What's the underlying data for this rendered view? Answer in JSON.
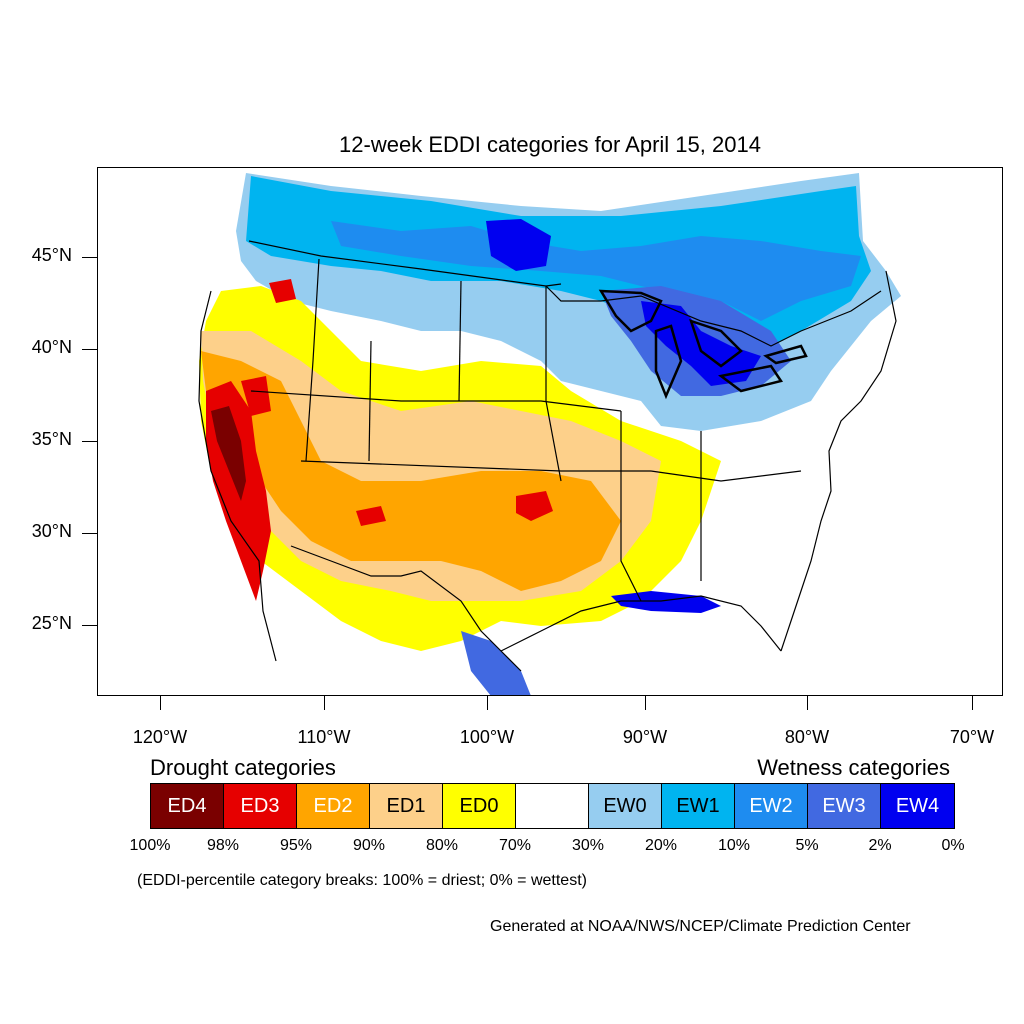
{
  "title": "12-week EDDI categories for April 15, 2014",
  "lat_labels": [
    "45°N",
    "40°N",
    "35°N",
    "30°N",
    "25°N"
  ],
  "lon_labels": [
    "120°W",
    "110°W",
    "100°W",
    "90°W",
    "80°W",
    "70°W"
  ],
  "legend": {
    "drought_header": "Drought categories",
    "wetness_header": "Wetness categories",
    "categories": [
      {
        "label": "ED4",
        "color": "#7a0000",
        "text_color": "#ffffff"
      },
      {
        "label": "ED3",
        "color": "#e60000",
        "text_color": "#ffffff"
      },
      {
        "label": "ED2",
        "color": "#ffa500",
        "text_color": "#ffffff"
      },
      {
        "label": "ED1",
        "color": "#fdd08a",
        "text_color": "#000000"
      },
      {
        "label": "ED0",
        "color": "#ffff00",
        "text_color": "#000000"
      },
      {
        "label": "",
        "color": "#ffffff",
        "text_color": "#000000"
      },
      {
        "label": "EW0",
        "color": "#96cdf0",
        "text_color": "#000000"
      },
      {
        "label": "EW1",
        "color": "#00b4f0",
        "text_color": "#000000"
      },
      {
        "label": "EW2",
        "color": "#1e8cf0",
        "text_color": "#ffffff"
      },
      {
        "label": "EW3",
        "color": "#4169e1",
        "text_color": "#ffffff"
      },
      {
        "label": "EW4",
        "color": "#0000f0",
        "text_color": "#ffffff"
      }
    ],
    "breaks": [
      "100%",
      "98%",
      "95%",
      "90%",
      "80%",
      "70%",
      "30%",
      "20%",
      "10%",
      "5%",
      "2%",
      "0%"
    ]
  },
  "note": "(EDDI-percentile category breaks: 100% = driest; 0% = wettest)",
  "credit": "Generated at NOAA/NWS/NCEP/Climate Prediction Center"
}
